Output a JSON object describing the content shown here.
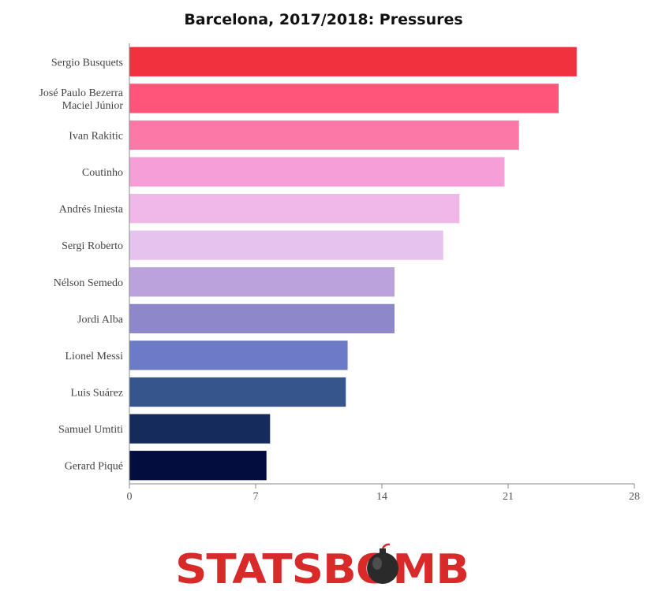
{
  "chart_data": {
    "type": "bar",
    "orientation": "horizontal",
    "title": "Barcelona, 2017/2018: Pressures",
    "xlabel": "",
    "ylabel": "",
    "xlim": [
      0,
      28
    ],
    "xticks": [
      0,
      7,
      14,
      21,
      28
    ],
    "grid": false,
    "categories": [
      "Sergio Busquets",
      "José Paulo Bezerra Maciel Júnior",
      "Ivan Rakitic",
      "Coutinho",
      "Andrés Iniesta",
      "Sergi Roberto",
      "Nélson Semedo",
      "Jordi Alba",
      "Lionel Messi",
      "Luis Suárez",
      "Samuel Umtiti",
      "Gerard Piqué"
    ],
    "values": [
      24.8,
      23.8,
      21.6,
      20.8,
      18.3,
      17.4,
      14.7,
      14.7,
      12.1,
      12.0,
      7.8,
      7.6
    ],
    "colors": [
      "#f2313f",
      "#ff557a",
      "#fc78a6",
      "#f59fd6",
      "#f0b8e9",
      "#e6c3ef",
      "#bba2dd",
      "#8e88ca",
      "#6b7bc6",
      "#36558c",
      "#142b5b",
      "#040e3e"
    ]
  },
  "brand": {
    "text": "STATSBOMB",
    "color": "#d92a2a",
    "icon": "bomb-icon"
  }
}
